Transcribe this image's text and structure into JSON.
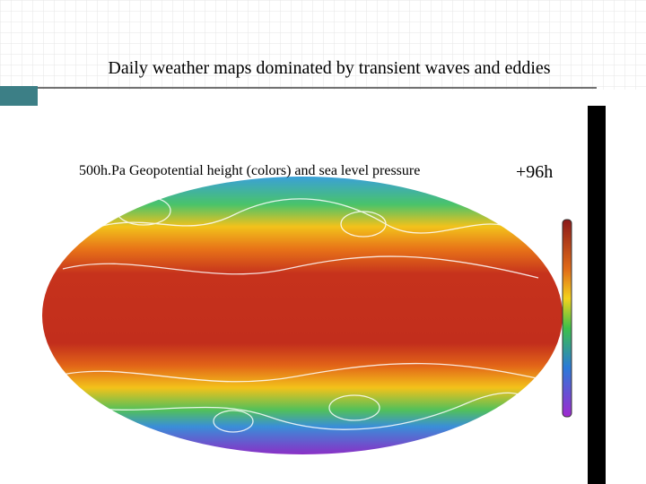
{
  "slide": {
    "title": "Daily weather maps dominated by transient waves and eddies",
    "figure": {
      "caption": "500h.Pa Geopotential height (colors) and sea level pressure",
      "lead_time": "+96h"
    }
  }
}
